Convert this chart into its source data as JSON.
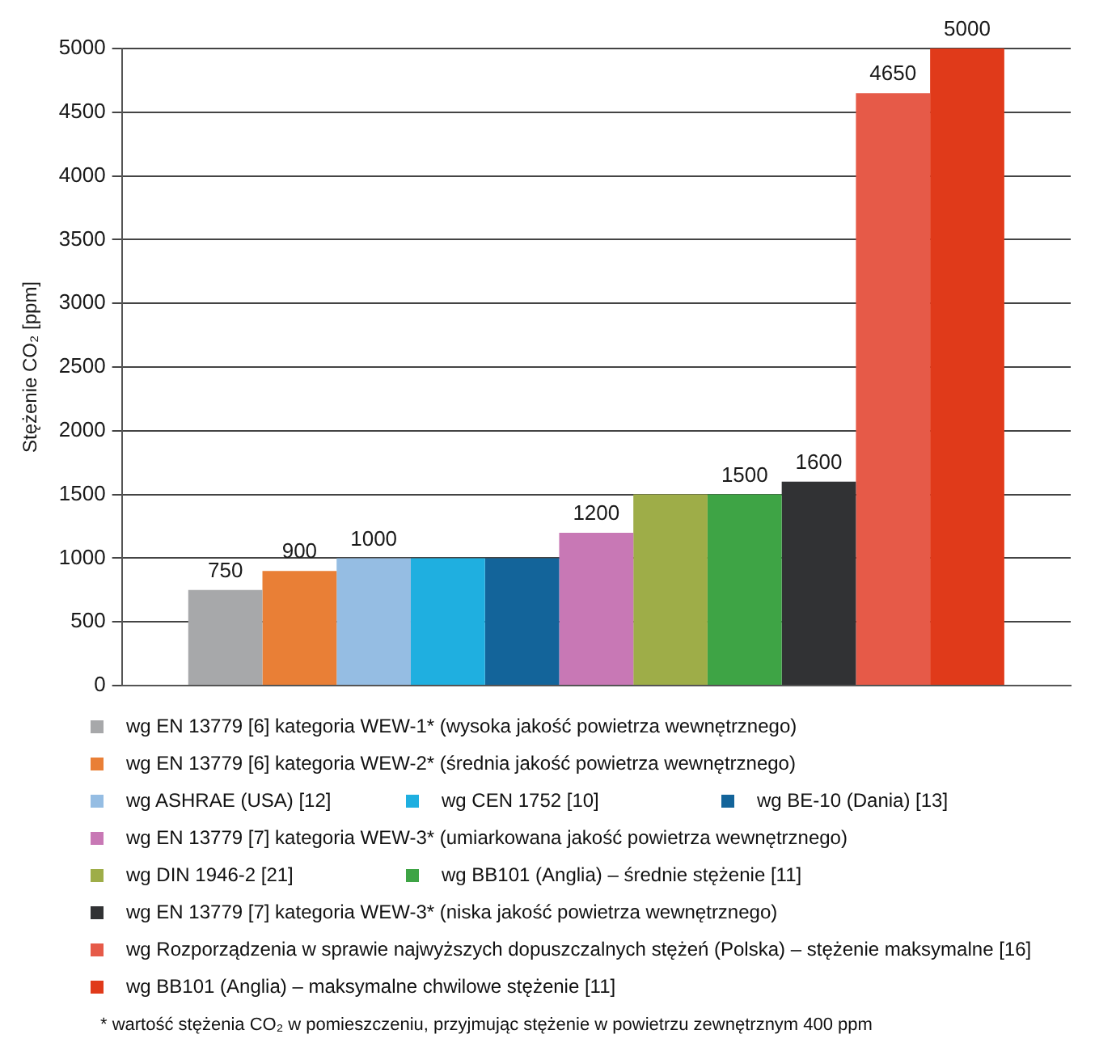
{
  "chart_data": {
    "type": "bar",
    "ylabel": "Stężenie CO₂ [ppm]",
    "categories": [
      null
    ],
    "series": [
      {
        "name": "wg EN 13779 [6] kategoria WEW-1* (wysoka jakość powietrza wewnętrznego)",
        "color": "#a7a8aa",
        "values": [
          750
        ],
        "value_labels": [
          "750"
        ]
      },
      {
        "name": "wg EN 13779 [6] kategoria WEW-2* (średnia jakość powietrza wewnętrznego)",
        "color": "#e97f36",
        "values": [
          900
        ],
        "value_labels": [
          "900"
        ]
      },
      {
        "name": "wg ASHRAE (USA) [12]",
        "color": "#95bde3",
        "values": [
          1000
        ],
        "value_labels": [
          "1000"
        ]
      },
      {
        "name": "wg CEN 1752 [10]",
        "color": "#1fafe0",
        "values": [
          1000
        ],
        "value_labels": [
          null
        ]
      },
      {
        "name": "wg BE-10 (Dania) [13]",
        "color": "#13649a",
        "values": [
          1000
        ],
        "value_labels": [
          null
        ]
      },
      {
        "name": "wg EN 13779 [7] kategoria WEW-3* (umiarkowana jakość powietrza wewnętrznego)",
        "color": "#c878b5",
        "values": [
          1200
        ],
        "value_labels": [
          "1200"
        ]
      },
      {
        "name": "wg DIN 1946-2 [21]",
        "color": "#9ead48",
        "values": [
          1500
        ],
        "value_labels": [
          null
        ]
      },
      {
        "name": "wg BB101 (Anglia) – średnie stężenie [11]",
        "color": "#3ea445",
        "values": [
          1500
        ],
        "value_labels": [
          "1500"
        ]
      },
      {
        "name": "wg EN 13779 [7] kategoria WEW-3* (niska jakość powietrza wewnętrznego)",
        "color": "#313234",
        "values": [
          1600
        ],
        "value_labels": [
          "1600"
        ]
      },
      {
        "name": "wg Rozporządzenia w sprawie najwyższych dopuszczalnych stężeń (Polska) – stężenie maksymalne [16]",
        "color": "#e65a48",
        "values": [
          4650
        ],
        "value_labels": [
          "4650"
        ]
      },
      {
        "name": "wg BB101 (Anglia) – maksymalne chwilowe stężenie [11]",
        "color": "#e03a1a",
        "values": [
          5000
        ],
        "value_labels": [
          "5000"
        ]
      }
    ],
    "ylim": [
      0,
      5000
    ],
    "yticks": [
      0,
      500,
      1000,
      1500,
      2000,
      2500,
      3000,
      3500,
      4000,
      4500,
      5000
    ],
    "grid": "y",
    "legend": "bottom",
    "annotations": [
      "* wartość stężenia CO₂ w pomieszczeniu, przyjmując stężenie w powietrzu zewnętrznym 400 ppm"
    ]
  }
}
